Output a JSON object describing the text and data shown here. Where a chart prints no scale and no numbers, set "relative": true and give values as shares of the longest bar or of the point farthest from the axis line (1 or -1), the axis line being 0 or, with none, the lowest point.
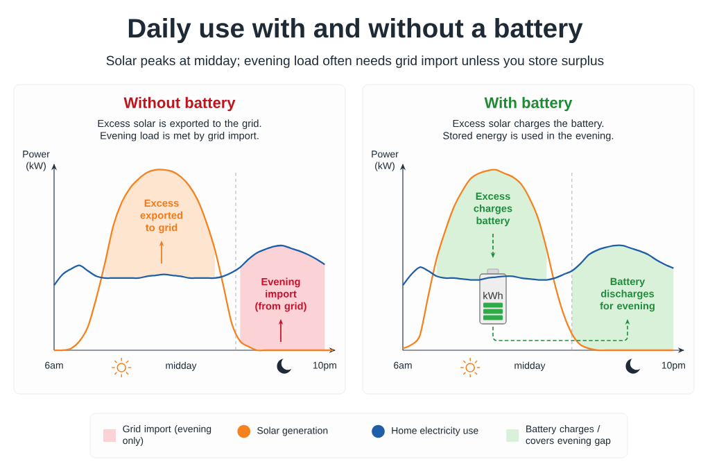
{
  "chart_data": [
    {
      "type": "other",
      "title": "Daily use with and without a battery",
      "subtitle": "Solar peaks at midday; evening load often needs grid import unless you store surplus"
    },
    {
      "type": "line",
      "title": "Without battery",
      "subtitle": "Excess solar is exported to the grid. Evening load is met by grid import.",
      "ylabel": "Power (kW)",
      "relative": true,
      "legend": "bottom",
      "categories": [
        "6am",
        null,
        null,
        null,
        null,
        null,
        null,
        null,
        null,
        null,
        null,
        null,
        null,
        null,
        null,
        "midday",
        null,
        null,
        null,
        null,
        null,
        null,
        null,
        null,
        null,
        null,
        null,
        null,
        null,
        null,
        null,
        null,
        "10pm",
        null
      ],
      "series": [
        {
          "type": "area",
          "color": "#fde5cf",
          "values": [
            null,
            null,
            null,
            null,
            null,
            null,
            0.48,
            0.69,
            0.82,
            0.9,
            0.95,
            0.985,
            1.0,
            1.0,
            0.99,
            0.96,
            0.91,
            0.83,
            0.71,
            0.56,
            null,
            null,
            null,
            null,
            null,
            null,
            null,
            null,
            null,
            null,
            null,
            null,
            null,
            null
          ]
        },
        {
          "type": "area",
          "name": "Grid import (evening only)",
          "color": "#fbd3d6",
          "values": [
            null,
            null,
            null,
            null,
            null,
            null,
            null,
            null,
            null,
            null,
            null,
            null,
            null,
            null,
            null,
            null,
            null,
            null,
            null,
            null,
            null,
            null,
            0.46,
            0.505,
            0.54,
            0.56,
            0.575,
            0.58,
            0.565,
            0.55,
            0.53,
            0.505,
            0.475,
            null
          ]
        },
        {
          "type": "line",
          "name": "Solar generation",
          "color": "#f5821f",
          "values": [
            0,
            0,
            0.01,
            0.05,
            0.13,
            0.29,
            0.48,
            0.69,
            0.82,
            0.9,
            0.95,
            0.985,
            1.0,
            1.0,
            0.99,
            0.96,
            0.91,
            0.83,
            0.71,
            0.56,
            0.36,
            0.15,
            0.05,
            0.02,
            0,
            0,
            0,
            0,
            0,
            0,
            0,
            0,
            0,
            0
          ]
        },
        {
          "type": "line",
          "name": "Home electricity use",
          "color": "#1f5fa8",
          "values": [
            0.36,
            0.42,
            0.45,
            0.47,
            0.44,
            0.41,
            0.4,
            0.4,
            0.4,
            0.4,
            0.4,
            0.41,
            0.415,
            0.42,
            0.415,
            0.41,
            0.4,
            0.4,
            0.4,
            0.4,
            0.41,
            0.43,
            0.46,
            0.505,
            0.54,
            0.56,
            0.575,
            0.58,
            0.565,
            0.55,
            0.53,
            0.505,
            0.475,
            null
          ]
        }
      ],
      "annotations": [
        "Excess exported to grid",
        "Evening import (from grid)"
      ]
    },
    {
      "type": "line",
      "title": "With battery",
      "subtitle": "Excess solar charges the battery. Stored energy is used in the evening.",
      "ylabel": "Power (kW)",
      "relative": true,
      "legend": "bottom",
      "categories": [
        "6am",
        null,
        null,
        null,
        null,
        null,
        null,
        null,
        null,
        null,
        null,
        null,
        null,
        null,
        null,
        "midday",
        null,
        null,
        null,
        null,
        null,
        null,
        null,
        null,
        null,
        null,
        null,
        null,
        null,
        null,
        null,
        null,
        "10pm",
        null
      ],
      "series": [
        {
          "type": "area",
          "name": "Battery charges / covers evening gap",
          "color": "#d9f0d9",
          "values": [
            null,
            null,
            null,
            null,
            0.51,
            0.66,
            0.79,
            0.88,
            0.95,
            0.98,
            0.995,
            1.0,
            0.98,
            0.96,
            0.92,
            0.84,
            0.73,
            0.56,
            null,
            null,
            null,
            null,
            null,
            null,
            null,
            null,
            null,
            null,
            null,
            null,
            null,
            null,
            null,
            null
          ]
        },
        {
          "type": "area",
          "color": "#d9f0d9",
          "values": [
            null,
            null,
            null,
            null,
            null,
            null,
            null,
            null,
            null,
            null,
            null,
            null,
            null,
            null,
            null,
            null,
            null,
            null,
            null,
            null,
            0.44,
            0.48,
            0.53,
            0.555,
            0.57,
            0.58,
            0.58,
            0.565,
            0.55,
            0.53,
            0.5,
            0.475,
            0.455,
            null
          ]
        },
        {
          "type": "line",
          "color": "#f5821f",
          "values": [
            0.01,
            0.03,
            0.08,
            0.3,
            0.51,
            0.66,
            0.79,
            0.88,
            0.95,
            0.98,
            0.995,
            1.0,
            0.98,
            0.96,
            0.92,
            0.84,
            0.73,
            0.56,
            0.36,
            0.2,
            0.09,
            0.03,
            0.01,
            0,
            0,
            0,
            0,
            0,
            0,
            0,
            0,
            0,
            0,
            null
          ]
        },
        {
          "type": "line",
          "color": "#1f5fa8",
          "values": [
            0.36,
            0.42,
            0.46,
            0.44,
            0.41,
            0.4,
            0.4,
            0.395,
            0.39,
            0.39,
            0.4,
            0.405,
            0.41,
            0.41,
            0.4,
            0.395,
            0.39,
            0.39,
            0.4,
            0.42,
            0.44,
            0.48,
            0.53,
            0.555,
            0.57,
            0.58,
            0.58,
            0.565,
            0.55,
            0.53,
            0.5,
            0.475,
            0.455,
            null
          ]
        }
      ],
      "annotations": [
        "Excess charges battery",
        "Battery discharges for evening",
        "kWh"
      ]
    }
  ]
}
